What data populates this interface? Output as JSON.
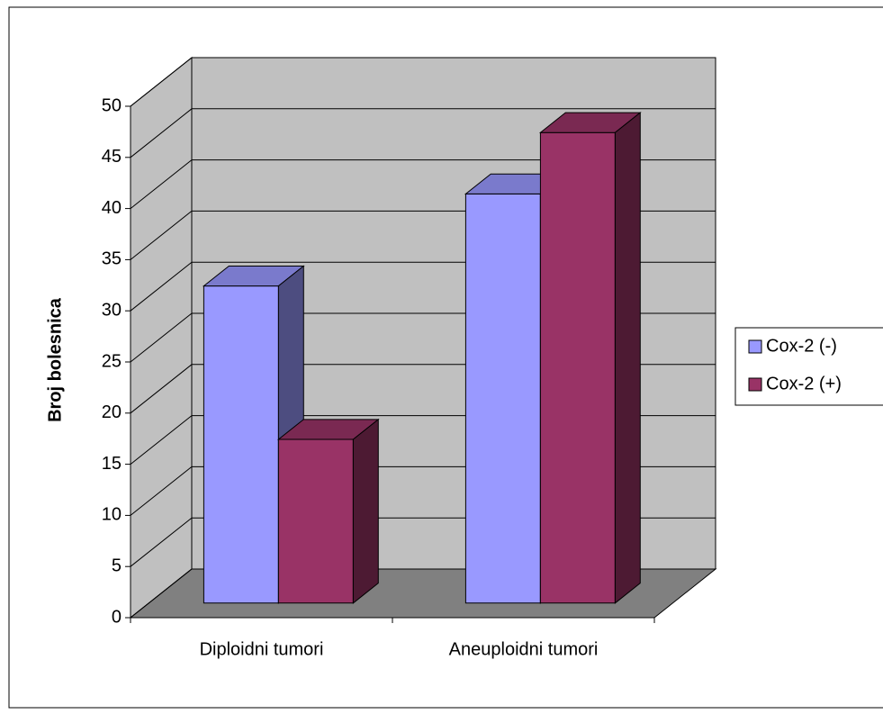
{
  "chart_data": {
    "type": "bar3d",
    "y_label": "Broj bolesnica",
    "categories": [
      "Diploidni tumori",
      "Aneuploidni tumori"
    ],
    "series": [
      {
        "name": "Cox-2 (-)",
        "color": "#9999ff",
        "values": [
          31,
          40
        ]
      },
      {
        "name": "Cox-2 (+)",
        "color": "#993366",
        "values": [
          16,
          46
        ]
      }
    ],
    "ylim": [
      0,
      50
    ],
    "yticks": [
      0,
      5,
      10,
      15,
      20,
      25,
      30,
      35,
      40,
      45,
      50
    ],
    "grid": true,
    "legend": "right"
  }
}
